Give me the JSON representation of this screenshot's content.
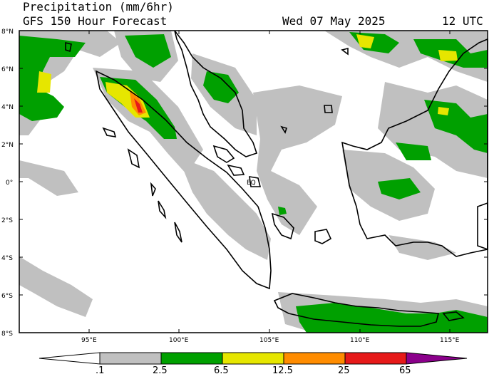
{
  "header": {
    "title": "Precipitation (mm/6hr)",
    "subtitle": "GFS 150 Hour Forecast",
    "valid_time": "Wed 07 May 2025",
    "utc": "12 UTC"
  },
  "map": {
    "lat_labels": [
      "8°N",
      "6°N",
      "4°N",
      "2°N",
      "0°",
      "2°S",
      "4°S",
      "6°S",
      "8°S"
    ],
    "lon_labels": [
      "95°E",
      "100°E",
      "105°E",
      "110°E",
      "115°E"
    ],
    "equator_label": "EQ"
  },
  "colorbar": {
    "tick_labels": [
      ".1",
      "2.5",
      "6.5",
      "12.5",
      "25",
      "65"
    ],
    "colors": [
      "#c0c0c0",
      "#00a000",
      "#e6e600",
      "#ff8c00",
      "#e61919",
      "#8b008b"
    ]
  }
}
